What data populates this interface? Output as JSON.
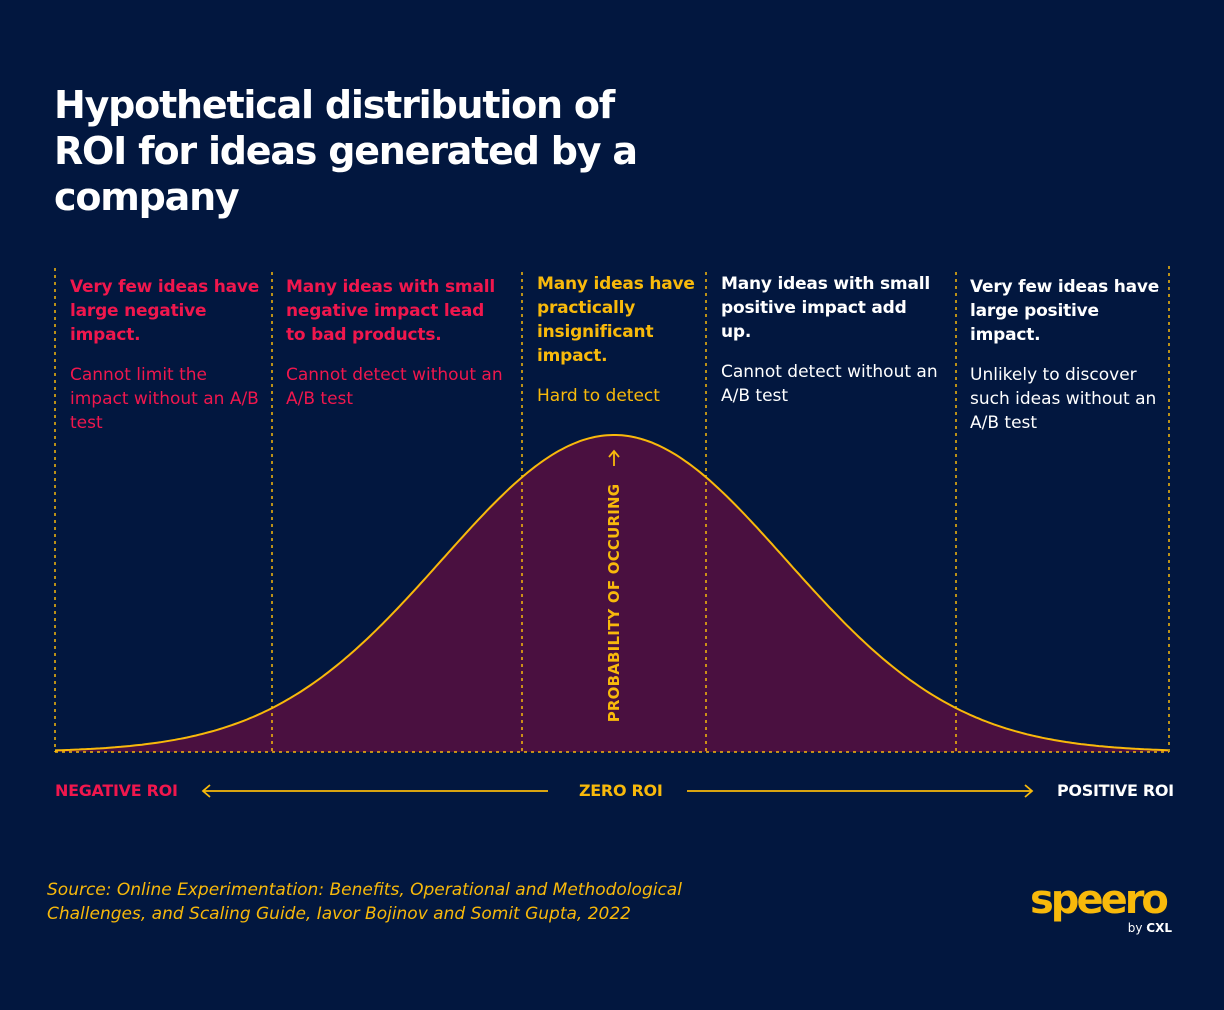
{
  "title": "Hypothetical distribution of ROI for ideas generated by a company",
  "zones": [
    {
      "heading": "Very few ideas have large negative impact.",
      "text": "Cannot limit the impact without an A/B test",
      "color": "#f0174d"
    },
    {
      "heading": "Many ideas with small negative impact lead to bad products.",
      "text": "Cannot detect without an A/B test",
      "color": "#f0174d"
    },
    {
      "heading": "Many ideas have practically insignificant impact.",
      "text": "Hard to detect",
      "color": "#f8b90b"
    },
    {
      "heading": "Many ideas with small positive impact add up.",
      "text": "Cannot detect without an A/B test",
      "color": "#ffffff"
    },
    {
      "heading": "Very few ideas have large positive impact.",
      "text": "Unlikely to discover such ideas without an A/B test",
      "color": "#ffffff"
    }
  ],
  "axis": {
    "y_label": "PROBABILITY OF OCCURING",
    "negative": "NEGATIVE ROI",
    "zero": "ZERO ROI",
    "positive": "POSITIVE ROI"
  },
  "source": "Source: Online Experimentation: Benefits, Operational and Methodological Challenges, and Scaling Guide, Iavor Bojinov and Somit Gupta, 2022",
  "logo": {
    "word": "speero",
    "by": "by",
    "brand": "CXL"
  },
  "colors": {
    "background": "#02173f",
    "curve": "#f8b90b",
    "fill": "#4a1040",
    "negative": "#f0174d",
    "neutral": "#f8b90b",
    "positive": "#ffffff"
  }
}
